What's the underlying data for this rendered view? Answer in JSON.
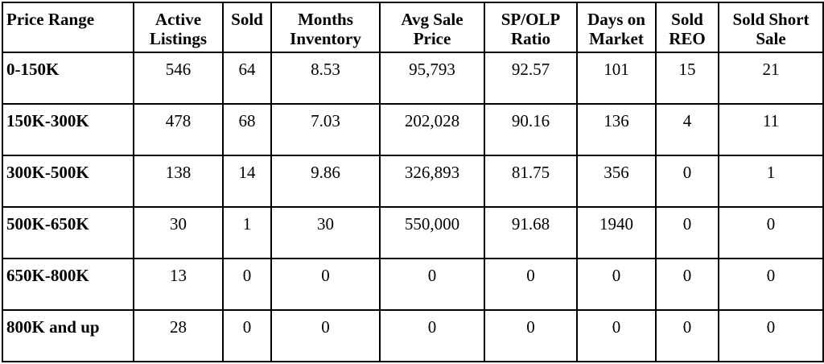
{
  "table": {
    "headers": [
      "Price Range",
      "Active Listings",
      "Sold",
      "Months Inventory",
      "Avg Sale Price",
      "SP/OLP Ratio",
      "Days on Market",
      "Sold REO",
      "Sold Short Sale"
    ],
    "rows": [
      [
        "0-150K",
        "546",
        "64",
        "8.53",
        "95,793",
        "92.57",
        "101",
        "15",
        "21"
      ],
      [
        "150K-300K",
        "478",
        "68",
        "7.03",
        "202,028",
        "90.16",
        "136",
        "4",
        "11"
      ],
      [
        "300K-500K",
        "138",
        "14",
        "9.86",
        "326,893",
        "81.75",
        "356",
        "0",
        "1"
      ],
      [
        "500K-650K",
        "30",
        "1",
        "30",
        "550,000",
        "91.68",
        "1940",
        "0",
        "0"
      ],
      [
        "650K-800K",
        "13",
        "0",
        "0",
        "0",
        "0",
        "0",
        "0",
        "0"
      ],
      [
        "800K and up",
        "28",
        "0",
        "0",
        "0",
        "0",
        "0",
        "0",
        "0"
      ]
    ]
  }
}
